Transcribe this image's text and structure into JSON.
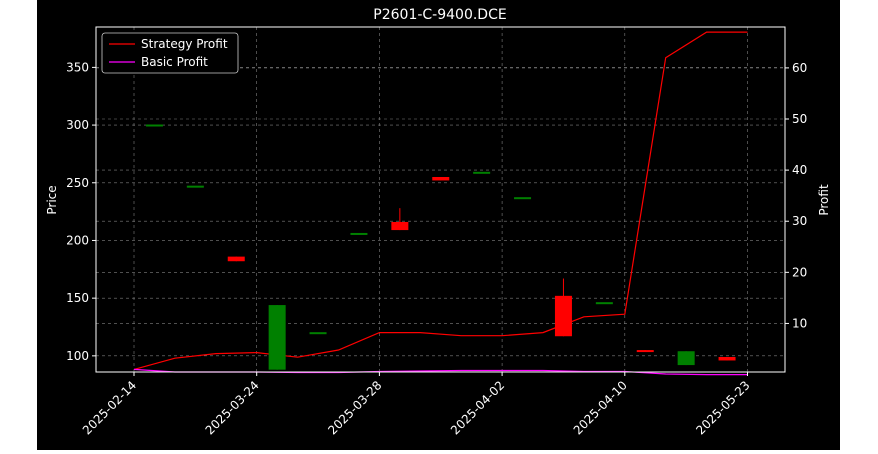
{
  "chart_data": {
    "type": "candlestick",
    "title": "P2601-C-9400.DCE",
    "xlabel": "",
    "ylabel": "Price",
    "y2label": "Profit",
    "ylim": [
      86,
      385
    ],
    "y2lim": [
      0.5,
      68
    ],
    "grid": true,
    "legend_position": "top-left",
    "y_ticks": [
      100,
      150,
      200,
      250,
      300,
      350
    ],
    "y2_ticks": [
      10,
      20,
      30,
      40,
      50,
      60
    ],
    "x_tick_labels": [
      "2025-02-14",
      "2025-03-24",
      "2025-03-28",
      "2025-04-02",
      "2025-04-10",
      "2025-05-23"
    ],
    "candles": [
      {
        "open": 300,
        "high": 300,
        "low": 300,
        "close": 300.5
      },
      {
        "open": 247,
        "high": 247,
        "low": 247,
        "close": 247.5
      },
      {
        "open": 186,
        "high": 186,
        "low": 182,
        "close": 182
      },
      {
        "open": 88,
        "high": 144,
        "low": 88,
        "close": 144
      },
      {
        "open": 120,
        "high": 120,
        "low": 120,
        "close": 120.5
      },
      {
        "open": 206,
        "high": 206,
        "low": 206,
        "close": 206.5
      },
      {
        "open": 216,
        "high": 228,
        "low": 209,
        "close": 209
      },
      {
        "open": 255,
        "high": 255,
        "low": 252,
        "close": 252
      },
      {
        "open": 259,
        "high": 259,
        "low": 259,
        "close": 259.5
      },
      {
        "open": 237,
        "high": 237,
        "low": 237,
        "close": 237.5
      },
      {
        "open": 152,
        "high": 167,
        "low": 117,
        "close": 117
      },
      {
        "open": 146,
        "high": 146,
        "low": 146,
        "close": 146.5
      },
      {
        "open": 105,
        "high": 105,
        "low": 104,
        "close": 104
      },
      {
        "open": 92,
        "high": 104,
        "low": 92,
        "close": 104
      },
      {
        "open": 99,
        "high": 99,
        "low": 96,
        "close": 96
      }
    ],
    "series": [
      {
        "name": "Strategy Profit",
        "color": "#ff0000",
        "axis": "right",
        "values": [
          1.0,
          3.2,
          4.1,
          4.3,
          3.4,
          4.8,
          8.2,
          8.2,
          7.6,
          7.6,
          8.2,
          11.3,
          11.8,
          62.0,
          67.0,
          67.0
        ]
      },
      {
        "name": "Basic Profit",
        "color": "#ff00ff",
        "axis": "right",
        "values": [
          1.0,
          0.5,
          0.5,
          0.5,
          0.4,
          0.4,
          0.6,
          0.7,
          0.8,
          0.8,
          0.8,
          0.6,
          0.6,
          0.1,
          0.0,
          0.0
        ]
      }
    ],
    "colors": {
      "up": "#008000",
      "down": "#ff0000",
      "background": "#000000",
      "grid": "#808080"
    }
  }
}
